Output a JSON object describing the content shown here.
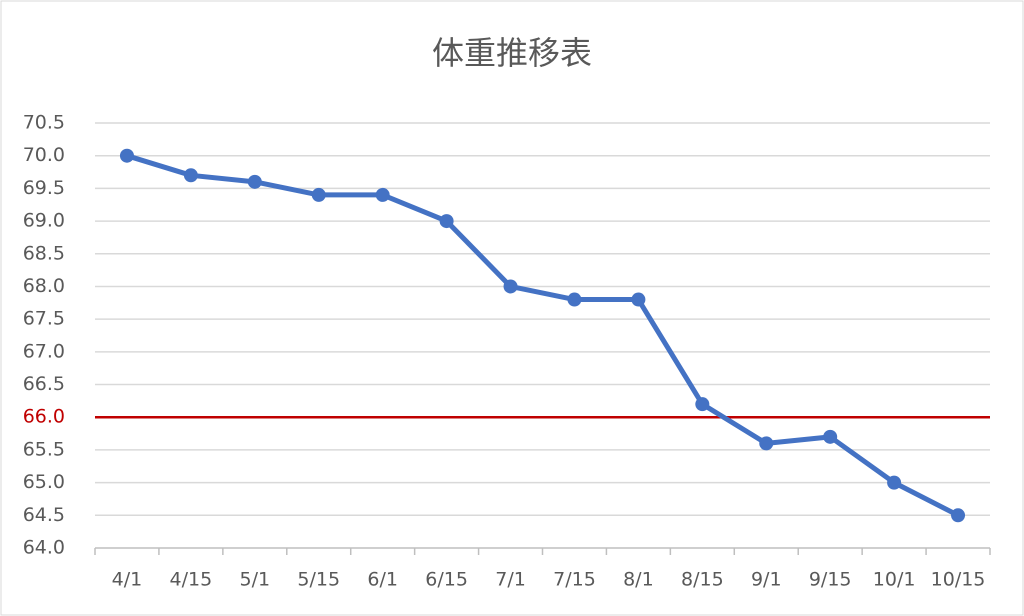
{
  "chart_data": {
    "type": "line",
    "title": "体重推移表",
    "categories": [
      "4/1",
      "4/15",
      "5/1",
      "5/15",
      "6/1",
      "6/15",
      "7/1",
      "7/15",
      "8/1",
      "8/15",
      "9/1",
      "9/15",
      "10/1",
      "10/15"
    ],
    "values": [
      70.0,
      69.7,
      69.6,
      69.4,
      69.4,
      69.0,
      68.0,
      67.8,
      67.8,
      66.2,
      65.6,
      65.7,
      65.0,
      64.5
    ],
    "color": "#4472c4",
    "ylim": [
      64,
      70.5
    ],
    "yticks": [
      {
        "value": 64,
        "label": "64.0"
      },
      {
        "value": 64.5,
        "label": "64.5"
      },
      {
        "value": 65,
        "label": "65.0"
      },
      {
        "value": 65.5,
        "label": "65.5"
      },
      {
        "value": 66,
        "label": "66.0"
      },
      {
        "value": 66.5,
        "label": "66.5"
      },
      {
        "value": 67,
        "label": "67.0"
      },
      {
        "value": 67.5,
        "label": "67.5"
      },
      {
        "value": 68,
        "label": "68.0"
      },
      {
        "value": 68.5,
        "label": "68.5"
      },
      {
        "value": 69,
        "label": "69.0"
      },
      {
        "value": 69.5,
        "label": "69.5"
      },
      {
        "value": 70,
        "label": "70.0"
      },
      {
        "value": 70.5,
        "label": "70.5"
      }
    ],
    "grid": true,
    "reference_line": {
      "value": 66,
      "color": "#c00000"
    }
  }
}
